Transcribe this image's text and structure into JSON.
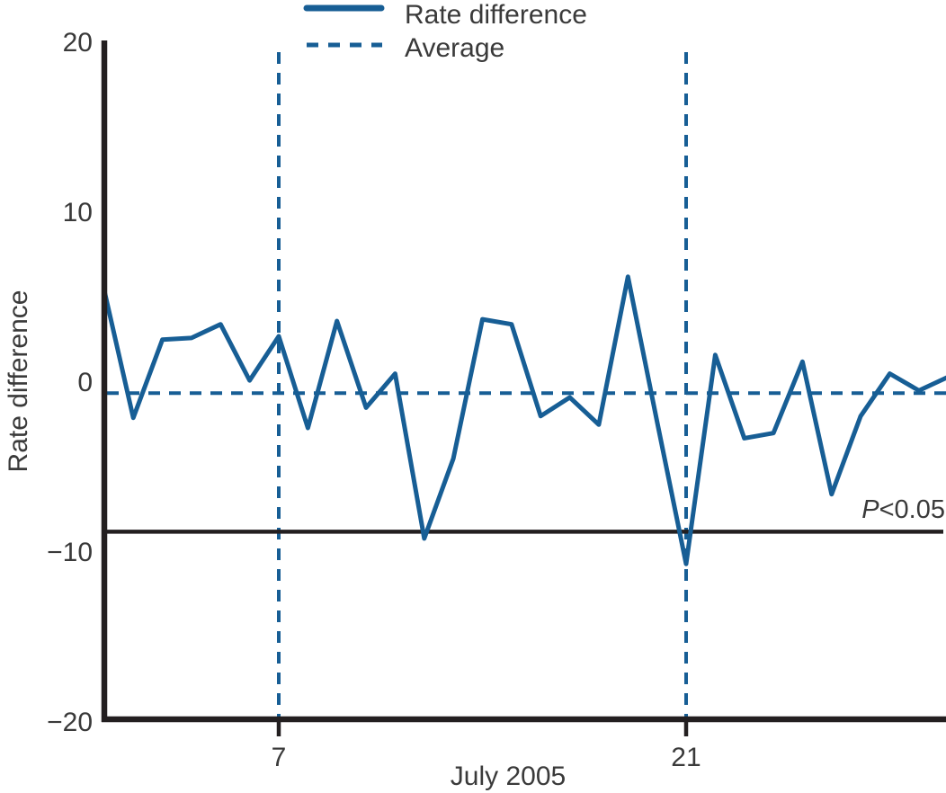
{
  "chart_data": {
    "type": "line",
    "title": "",
    "xlabel": "July 2005",
    "ylabel": "Rate difference",
    "xlim": [
      1,
      30
    ],
    "ylim": [
      -20,
      20
    ],
    "grid": false,
    "legend_position": "top",
    "x": [
      1,
      2,
      3,
      4,
      5,
      6,
      7,
      8,
      9,
      10,
      11,
      12,
      13,
      14,
      15,
      16,
      17,
      18,
      19,
      20,
      21,
      22,
      23,
      24,
      25,
      26,
      27,
      28,
      29,
      30
    ],
    "series": [
      {
        "name": "Rate difference",
        "style": "solid",
        "values": [
          5.4,
          -2.1,
          2.5,
          2.6,
          3.4,
          0.1,
          2.7,
          -2.7,
          3.6,
          -1.5,
          0.5,
          -9.2,
          -4.5,
          3.7,
          3.4,
          -2.0,
          -0.9,
          -2.5,
          6.2,
          -2.3,
          -10.7,
          1.6,
          -3.3,
          -3.0,
          1.2,
          -6.6,
          -2.0,
          0.5,
          -0.5,
          0.3
        ]
      }
    ],
    "average_line": {
      "name": "Average",
      "style": "dashed",
      "value": -0.65
    },
    "significance_line": {
      "value": -8.8,
      "label_italic": "P",
      "label_rest": "<0.05"
    },
    "vertical_marker_days": [
      7,
      21
    ],
    "yticks": [
      {
        "v": 20,
        "label": "20"
      },
      {
        "v": 10,
        "label": "10"
      },
      {
        "v": 0,
        "label": "0"
      },
      {
        "v": -10,
        "label": "−10"
      },
      {
        "v": -20,
        "label": "−20"
      }
    ],
    "xticks": [
      {
        "v": 7,
        "label": "7"
      },
      {
        "v": 21,
        "label": "21"
      }
    ],
    "legend": [
      {
        "label": "Rate difference",
        "style": "solid"
      },
      {
        "label": "Average",
        "style": "dashed"
      }
    ],
    "colors": {
      "series": "#175e95",
      "axis": "#231f20",
      "sig_line": "#231f20",
      "text": "#3a3a3a"
    }
  }
}
